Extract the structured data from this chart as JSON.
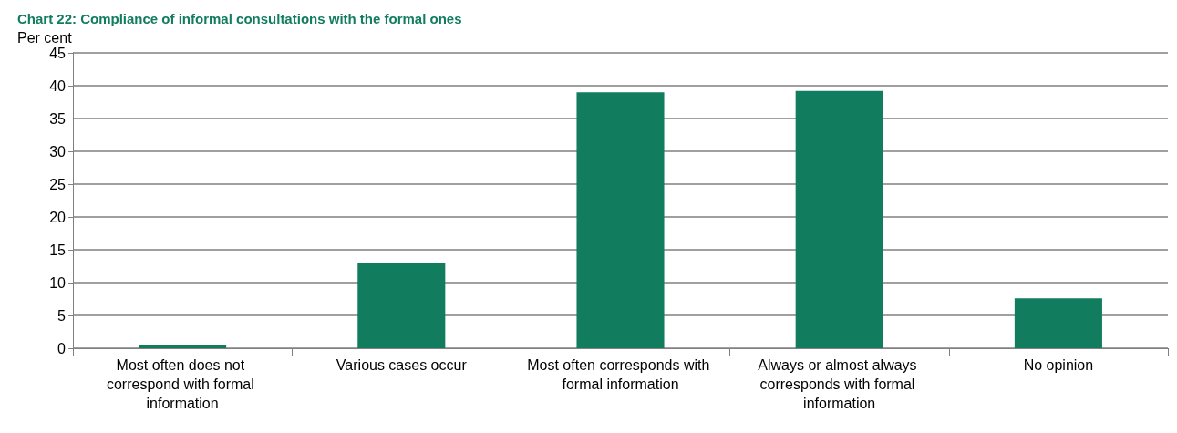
{
  "chart_data": {
    "type": "bar",
    "title": "Chart 22: Compliance of informal consultations with the formal ones",
    "ylabel": "Per cent",
    "categories": [
      "Most often does not correspond with formal information",
      "Various cases occur",
      "Most often corresponds with formal information",
      "Always or almost always corresponds with formal information",
      "No opinion"
    ],
    "values": [
      0.5,
      13.0,
      39.0,
      39.2,
      7.6
    ],
    "color": "#127d5e",
    "ylim": [
      0,
      45
    ],
    "yticks": [
      0,
      5,
      10,
      15,
      20,
      25,
      30,
      35,
      40,
      45
    ],
    "grid": "y"
  }
}
